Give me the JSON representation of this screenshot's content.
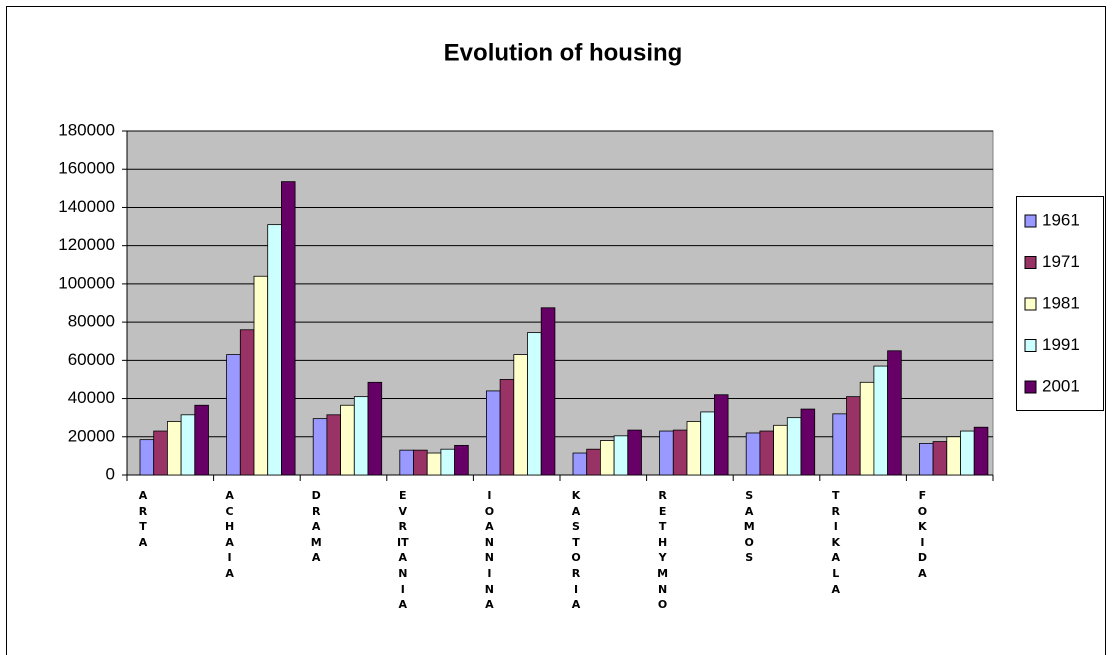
{
  "chart_data": {
    "type": "bar",
    "title": "Evolution of housing",
    "categories": [
      "ARTA",
      "ACHAIA",
      "DRAMA",
      "EVRITANIA",
      "IOANNINA",
      "KASTORIA",
      "RETHYMNO",
      "SAMOS",
      "TRIKALA",
      "FOKIDA"
    ],
    "series": [
      {
        "name": "1961",
        "color": "#9999ff",
        "values": [
          18500,
          63000,
          29500,
          13000,
          44000,
          11500,
          23000,
          22000,
          32000,
          16500
        ]
      },
      {
        "name": "1971",
        "color": "#993366",
        "values": [
          23000,
          76000,
          31500,
          13000,
          50000,
          13500,
          23500,
          23000,
          41000,
          17500
        ]
      },
      {
        "name": "1981",
        "color": "#ffffcc",
        "values": [
          28000,
          104000,
          36500,
          11500,
          63000,
          18000,
          28000,
          26000,
          48500,
          20000
        ]
      },
      {
        "name": "1991",
        "color": "#ccffff",
        "values": [
          31500,
          131000,
          41000,
          13500,
          74500,
          20500,
          33000,
          30000,
          57000,
          23000
        ]
      },
      {
        "name": "2001",
        "color": "#660066",
        "values": [
          36500,
          153500,
          48500,
          15500,
          87500,
          23500,
          42000,
          34500,
          65000,
          25000
        ]
      }
    ],
    "ylim": [
      0,
      180000
    ],
    "yticks": [
      0,
      20000,
      40000,
      60000,
      80000,
      100000,
      120000,
      140000,
      160000,
      180000
    ],
    "grid": true,
    "legend": "right"
  }
}
